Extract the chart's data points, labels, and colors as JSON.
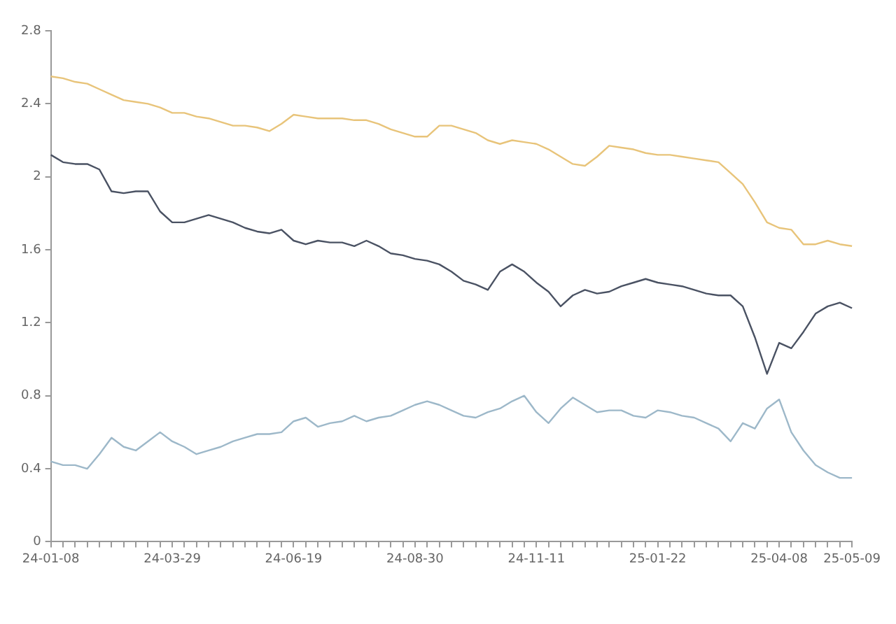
{
  "chart_data": {
    "type": "line",
    "categories": [
      "24-01-08",
      null,
      null,
      null,
      null,
      null,
      null,
      null,
      null,
      null,
      "24-03-29",
      null,
      null,
      null,
      null,
      null,
      null,
      null,
      null,
      null,
      "24-06-19",
      null,
      null,
      null,
      null,
      null,
      null,
      null,
      null,
      null,
      "24-08-30",
      null,
      null,
      null,
      null,
      null,
      null,
      null,
      null,
      null,
      "24-11-11",
      null,
      null,
      null,
      null,
      null,
      null,
      null,
      null,
      null,
      "25-01-22",
      null,
      null,
      null,
      null,
      null,
      null,
      null,
      null,
      null,
      "25-04-08",
      null,
      null,
      null,
      null,
      null,
      "25-05-09"
    ],
    "ylim": [
      0,
      2.8
    ],
    "yticks": [
      0,
      0.4,
      0.8,
      1.2,
      1.6,
      2,
      2.4,
      2.8
    ],
    "series": [
      {
        "color": "#e8c47a",
        "values": [
          2.55,
          2.54,
          2.52,
          2.51,
          2.48,
          2.45,
          2.42,
          2.41,
          2.4,
          2.38,
          2.35,
          2.35,
          2.33,
          2.32,
          2.3,
          2.28,
          2.28,
          2.27,
          2.25,
          2.29,
          2.34,
          2.33,
          2.32,
          2.32,
          2.32,
          2.31,
          2.31,
          2.29,
          2.26,
          2.24,
          2.22,
          2.22,
          2.28,
          2.28,
          2.26,
          2.24,
          2.2,
          2.18,
          2.2,
          2.19,
          2.18,
          2.15,
          2.11,
          2.07,
          2.06,
          2.11,
          2.17,
          2.16,
          2.15,
          2.13,
          2.12,
          2.12,
          2.11,
          2.1,
          2.09,
          2.08,
          2.02,
          1.96,
          1.86,
          1.75,
          1.72,
          1.71,
          1.63,
          1.63,
          1.65,
          1.63,
          1.62
        ]
      },
      {
        "color": "#4a5263",
        "values": [
          2.12,
          2.08,
          2.07,
          2.07,
          2.04,
          1.92,
          1.91,
          1.92,
          1.92,
          1.81,
          1.75,
          1.75,
          1.77,
          1.79,
          1.77,
          1.75,
          1.72,
          1.7,
          1.69,
          1.71,
          1.65,
          1.63,
          1.65,
          1.64,
          1.64,
          1.62,
          1.65,
          1.62,
          1.58,
          1.57,
          1.55,
          1.54,
          1.52,
          1.48,
          1.43,
          1.41,
          1.38,
          1.48,
          1.52,
          1.48,
          1.42,
          1.37,
          1.29,
          1.35,
          1.38,
          1.36,
          1.37,
          1.4,
          1.42,
          1.44,
          1.42,
          1.41,
          1.4,
          1.38,
          1.36,
          1.35,
          1.35,
          1.29,
          1.12,
          0.92,
          1.09,
          1.06,
          1.15,
          1.25,
          1.29,
          1.31,
          1.28
        ]
      },
      {
        "color": "#9db8c9",
        "values": [
          0.44,
          0.42,
          0.42,
          0.4,
          0.48,
          0.57,
          0.52,
          0.5,
          0.55,
          0.6,
          0.55,
          0.52,
          0.48,
          0.5,
          0.52,
          0.55,
          0.57,
          0.59,
          0.59,
          0.6,
          0.66,
          0.68,
          0.63,
          0.65,
          0.66,
          0.69,
          0.66,
          0.68,
          0.69,
          0.72,
          0.75,
          0.77,
          0.75,
          0.72,
          0.69,
          0.68,
          0.71,
          0.73,
          0.77,
          0.8,
          0.71,
          0.65,
          0.73,
          0.79,
          0.75,
          0.71,
          0.72,
          0.72,
          0.69,
          0.68,
          0.72,
          0.71,
          0.69,
          0.68,
          0.65,
          0.62,
          0.55,
          0.65,
          0.62,
          0.73,
          0.78,
          0.6,
          0.5,
          0.42,
          0.38,
          0.35,
          0.35
        ]
      }
    ]
  }
}
